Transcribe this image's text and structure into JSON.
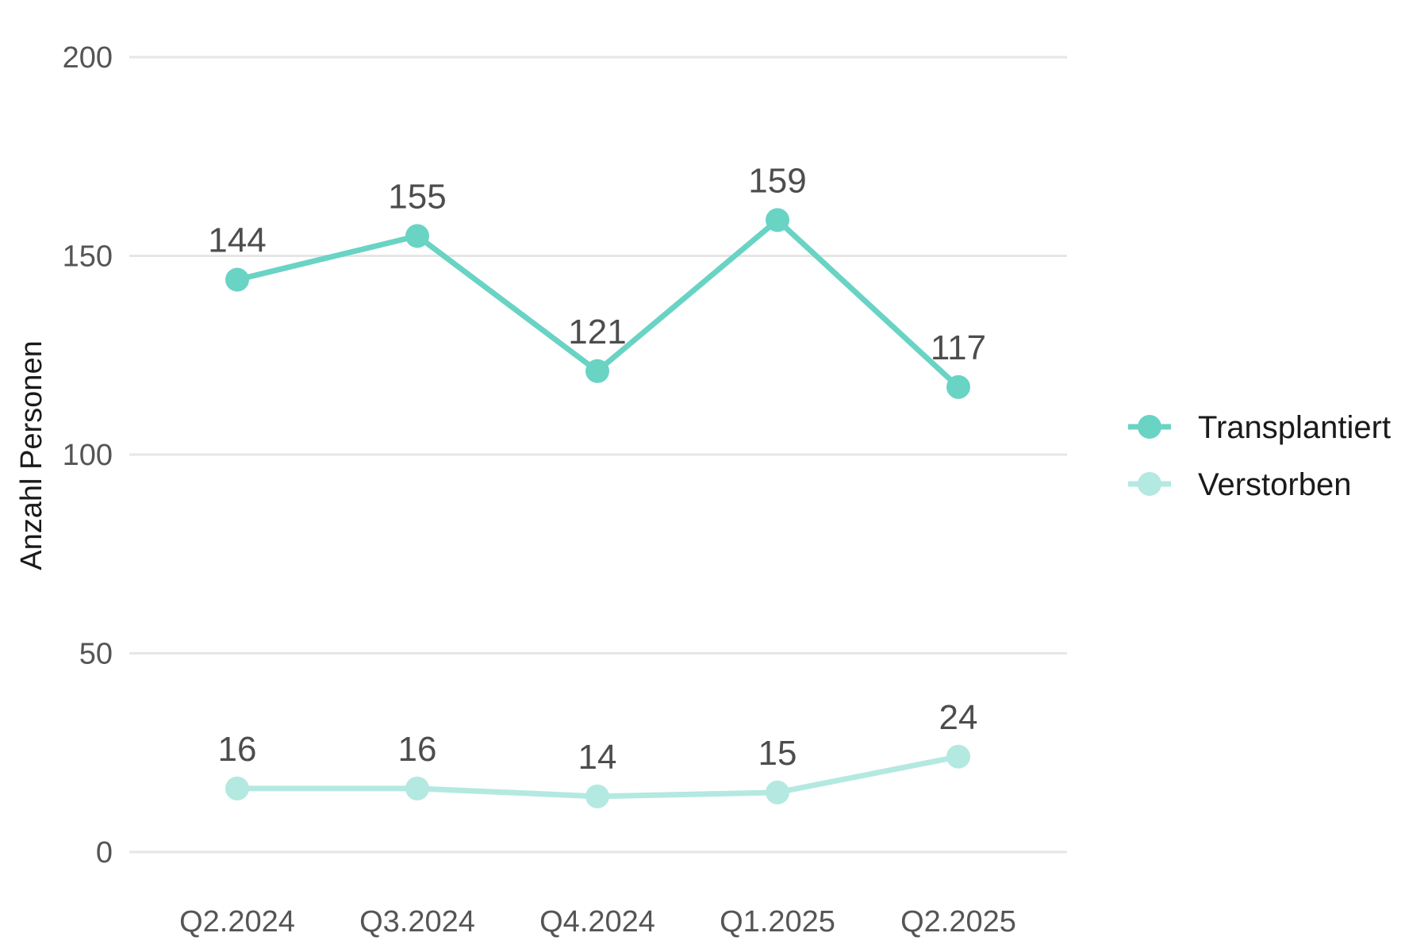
{
  "chart_data": {
    "type": "line",
    "title": "",
    "xlabel": "",
    "ylabel": "Anzahl Personen",
    "categories": [
      "Q2.2024",
      "Q3.2024",
      "Q4.2024",
      "Q1.2025",
      "Q2.2025"
    ],
    "ylim": [
      0,
      200
    ],
    "yticks": [
      0,
      50,
      100,
      150,
      200
    ],
    "grid": "horizontal",
    "legend_position": "right",
    "series": [
      {
        "name": "Transplantiert",
        "values": [
          144,
          155,
          121,
          159,
          117
        ],
        "color": "#69d3c4"
      },
      {
        "name": "Verstorben",
        "values": [
          16,
          16,
          14,
          15,
          24
        ],
        "color": "#b3e9e0"
      }
    ]
  }
}
